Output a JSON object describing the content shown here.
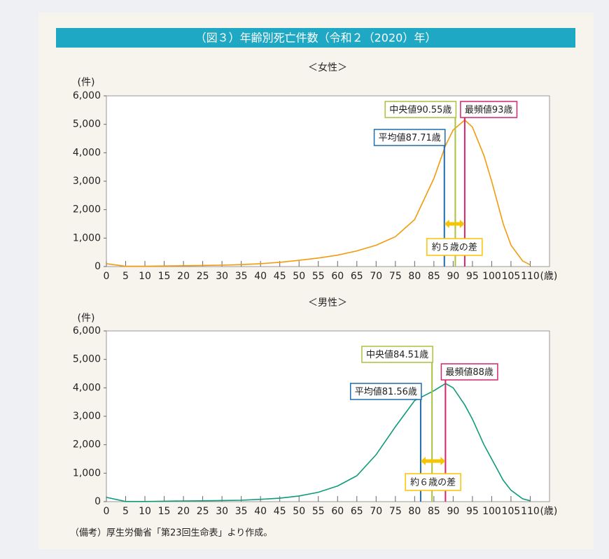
{
  "header": {
    "title": "（図３）年齢別死亡件数（令和２（2020）年）"
  },
  "footnote": "（備考）厚生労働省「第23回生命表」より作成。",
  "chart_data": [
    {
      "type": "line",
      "title": "＜女性＞",
      "y_label": "(件)",
      "x_label": "(歳)",
      "color": "#f29b0f",
      "x": [
        0,
        5,
        10,
        15,
        20,
        25,
        30,
        35,
        40,
        45,
        50,
        55,
        60,
        65,
        70,
        75,
        80,
        85,
        88,
        90,
        93,
        95,
        98,
        100,
        103,
        105,
        108,
        110
      ],
      "values": [
        100,
        10,
        10,
        20,
        30,
        40,
        50,
        70,
        100,
        150,
        220,
        300,
        400,
        550,
        750,
        1050,
        1650,
        3100,
        4250,
        4800,
        5150,
        4900,
        3900,
        3000,
        1500,
        750,
        200,
        60
      ],
      "xlim": [
        0,
        115
      ],
      "ylim": [
        0,
        6000
      ],
      "xticks": [
        0,
        5,
        10,
        15,
        20,
        25,
        30,
        35,
        40,
        45,
        50,
        55,
        60,
        65,
        70,
        75,
        80,
        85,
        90,
        95,
        100,
        105,
        110
      ],
      "yticks": [
        0,
        {
          "value": 1000,
          "label": "1,000"
        },
        {
          "value": 2000,
          "label": "2,000"
        },
        {
          "value": 3000,
          "label": "3,000"
        },
        {
          "value": 4000,
          "label": "4,000"
        },
        {
          "value": 5000,
          "label": "5,000"
        },
        {
          "value": 6000,
          "label": "6,000"
        }
      ],
      "markers": [
        {
          "label": "平均値87.71歳",
          "value": 87.71,
          "color": "#1f6cb0"
        },
        {
          "label": "中央値90.55歳",
          "value": 90.55,
          "color": "#a9c23f"
        },
        {
          "label": "最頻値93歳",
          "value": 93,
          "color": "#d6246e"
        }
      ],
      "difference_label": "約５歳の差",
      "difference_color": "#f7c500"
    },
    {
      "type": "line",
      "title": "＜男性＞",
      "y_label": "(件)",
      "x_label": "(歳)",
      "color": "#0f9b7a",
      "x": [
        0,
        5,
        10,
        15,
        20,
        25,
        30,
        35,
        40,
        45,
        50,
        55,
        60,
        65,
        70,
        75,
        80,
        85,
        88,
        90,
        93,
        95,
        98,
        100,
        103,
        105,
        108,
        110
      ],
      "values": [
        150,
        5,
        5,
        15,
        25,
        30,
        40,
        50,
        80,
        120,
        200,
        330,
        550,
        910,
        1650,
        2630,
        3550,
        3900,
        4150,
        4000,
        3400,
        2900,
        2000,
        1500,
        750,
        400,
        100,
        30
      ],
      "xlim": [
        0,
        115
      ],
      "ylim": [
        0,
        6000
      ],
      "xticks": [
        0,
        5,
        10,
        15,
        20,
        25,
        30,
        35,
        40,
        45,
        50,
        55,
        60,
        65,
        70,
        75,
        80,
        85,
        90,
        95,
        100,
        105,
        110
      ],
      "yticks": [
        0,
        {
          "value": 1000,
          "label": "1,000"
        },
        {
          "value": 2000,
          "label": "2,000"
        },
        {
          "value": 3000,
          "label": "3,000"
        },
        {
          "value": 4000,
          "label": "4,000"
        },
        {
          "value": 5000,
          "label": "5,000"
        },
        {
          "value": 6000,
          "label": "6,000"
        }
      ],
      "markers": [
        {
          "label": "平均値81.56歳",
          "value": 81.56,
          "color": "#1f6cb0"
        },
        {
          "label": "中央値84.51歳",
          "value": 84.51,
          "color": "#a9c23f"
        },
        {
          "label": "最頻値88歳",
          "value": 88,
          "color": "#d6246e"
        }
      ],
      "difference_label": "約６歳の差",
      "difference_color": "#f7c500"
    }
  ]
}
